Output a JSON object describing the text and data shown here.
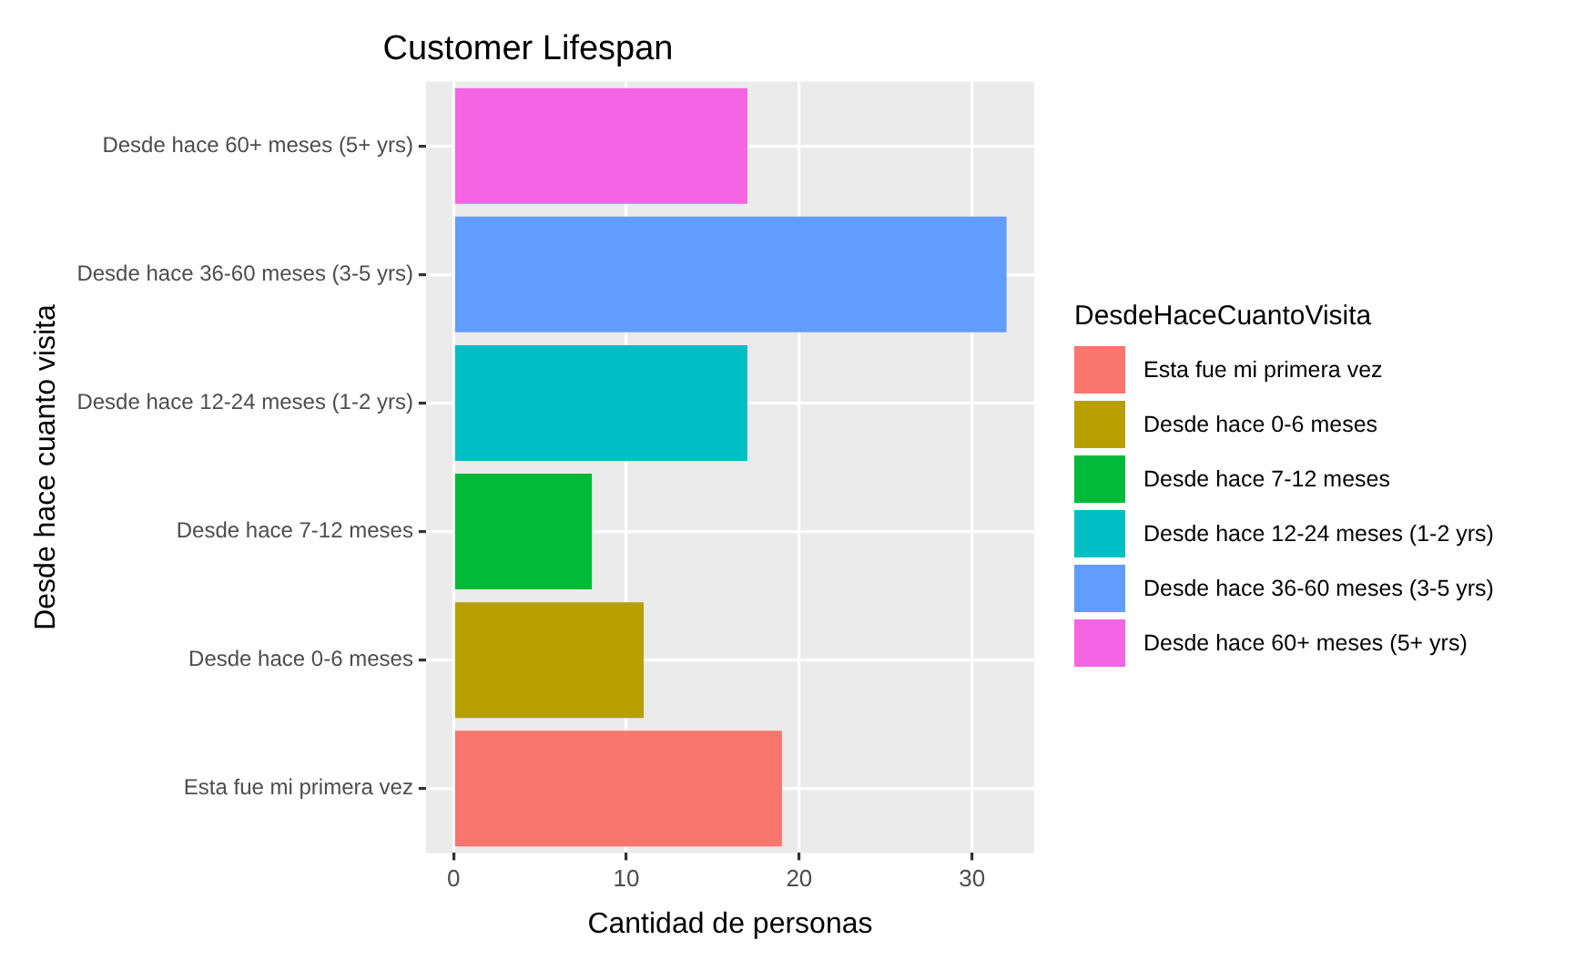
{
  "chart_data": {
    "type": "bar",
    "orientation": "horizontal",
    "stacked": true,
    "title": "Customer Lifespan",
    "xlabel": "Cantidad de personas",
    "ylabel": "Desde hace cuanto visita",
    "legend_title": "DesdeHaceCuantoVisita",
    "categories": [
      "Desde hace 60+ meses (5+ yrs)",
      "Desde hace 36-60 meses (3-5 yrs)",
      "Desde hace 12-24 meses (1-2 yrs)",
      "Desde hace 7-12 meses",
      "Desde hace 0-6 meses",
      "Esta fue mi primera vez"
    ],
    "series": [
      {
        "name": "Esta fue mi primera vez",
        "color": "#f8766d",
        "values": [
          null,
          null,
          null,
          null,
          null,
          19
        ]
      },
      {
        "name": "Desde hace 0-6 meses",
        "color": "#b79f00",
        "values": [
          null,
          null,
          null,
          null,
          11,
          null
        ]
      },
      {
        "name": "Desde hace 7-12 meses",
        "color": "#00ba38",
        "values": [
          null,
          null,
          null,
          8,
          null,
          null
        ]
      },
      {
        "name": "Desde hace 12-24 meses (1-2 yrs)",
        "color": "#00bfc4",
        "values": [
          null,
          null,
          17,
          null,
          null,
          null
        ]
      },
      {
        "name": "Desde hace 36-60 meses (3-5 yrs)",
        "color": "#619cff",
        "values": [
          null,
          32,
          null,
          null,
          null,
          null
        ]
      },
      {
        "name": "Desde hace 60+ meses (5+ yrs)",
        "color": "#f564e3",
        "values": [
          17,
          null,
          null,
          null,
          null,
          null
        ]
      }
    ],
    "xlim": [
      -1.6,
      33.6
    ],
    "xticks": [
      0,
      10,
      20,
      30
    ],
    "grid": true,
    "legend": "right"
  }
}
